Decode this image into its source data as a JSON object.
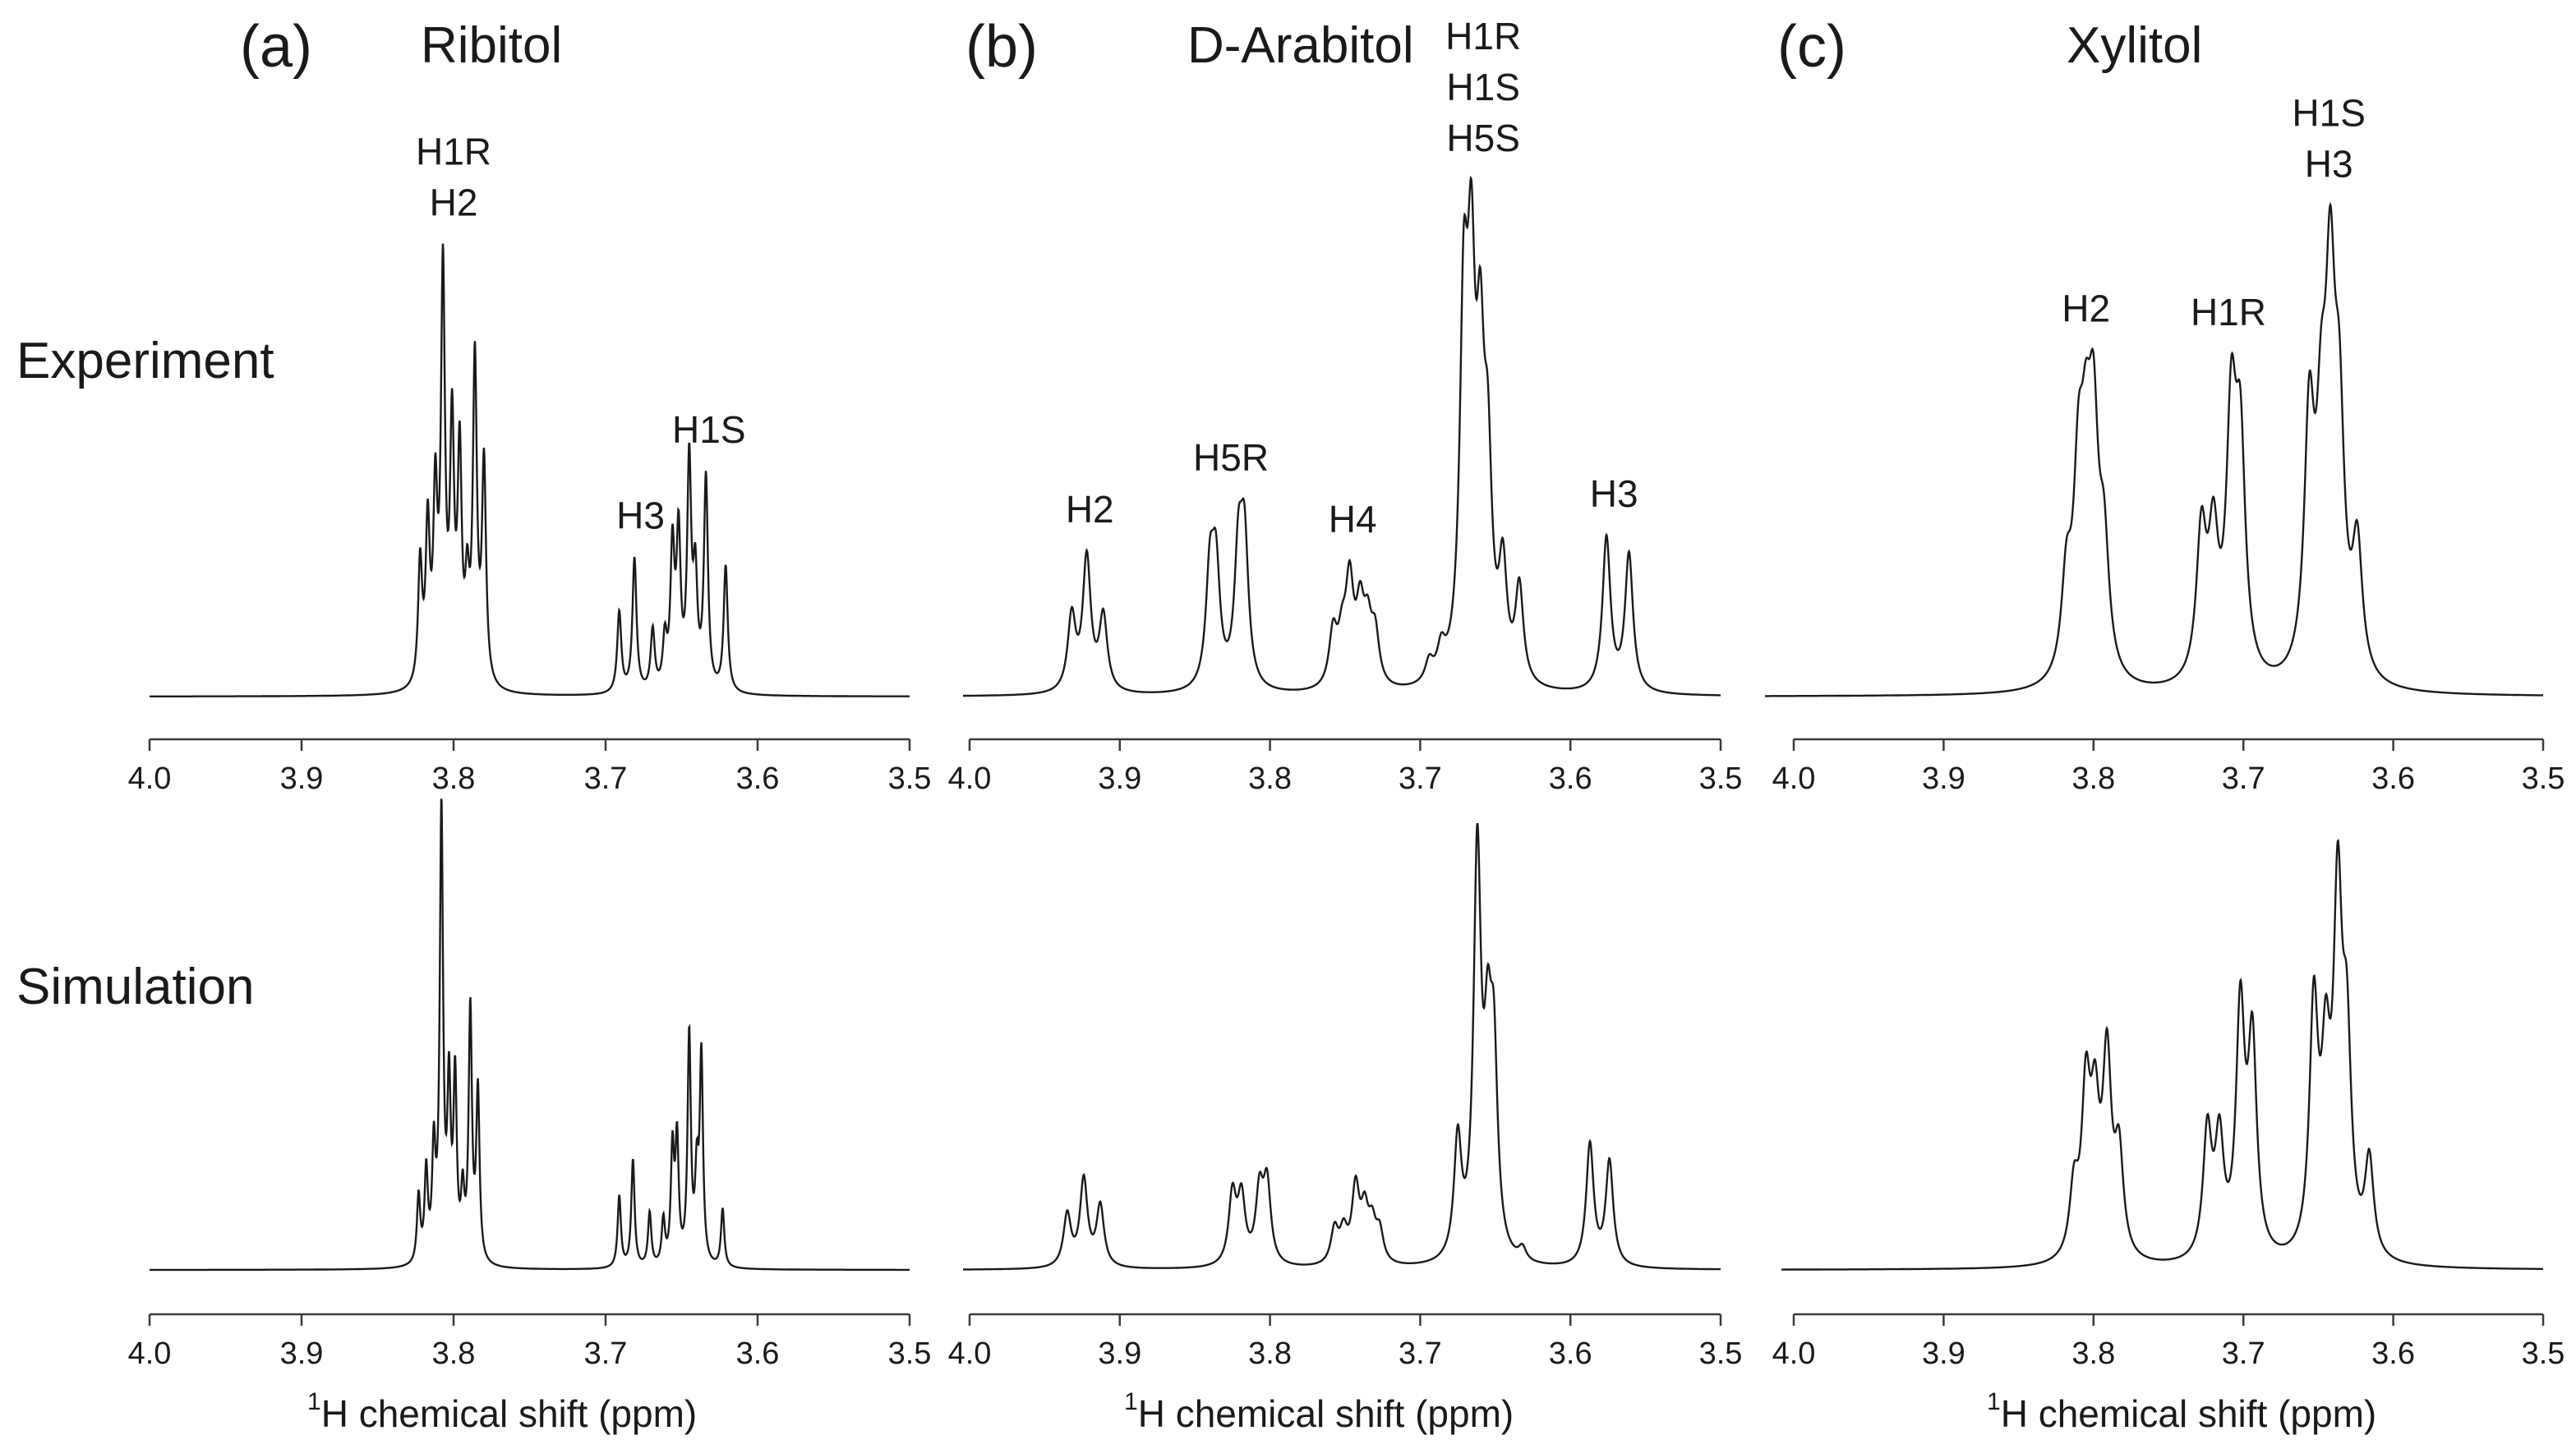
{
  "row_labels": {
    "experiment": "Experiment",
    "simulation": "Simulation"
  },
  "panels": [
    {
      "letter": "(a)",
      "prefix": "",
      "name": "Ribitol"
    },
    {
      "letter": "(b)",
      "prefix": "D",
      "name": "-Arabitol"
    },
    {
      "letter": "(c)",
      "prefix": "",
      "name": "Xylitol"
    }
  ],
  "xlabel": {
    "sup": "1",
    "text": "H chemical shift (ppm)"
  },
  "colors": {
    "line": "#1a1a1a",
    "axis": "#3a3a3a",
    "background": "#ffffff"
  },
  "chart_data": [
    {
      "type": "line",
      "title": "Ribitol",
      "row": "experiment",
      "xlabel": "1H chemical shift (ppm)",
      "xlim": [
        4.0,
        3.5
      ],
      "reversed_x": true,
      "ticks": [
        4.0,
        3.9,
        3.8,
        3.7,
        3.6,
        3.5
      ],
      "tick_labels": [
        "4.0",
        "3.9",
        "3.8",
        "3.7",
        "3.6",
        "3.5"
      ],
      "peaks": [
        [
          3.822,
          0.3
        ],
        [
          3.817,
          0.38
        ],
        [
          3.812,
          0.44
        ],
        [
          3.807,
          1.0
        ],
        [
          3.801,
          0.61
        ],
        [
          3.796,
          0.55
        ],
        [
          3.791,
          0.21
        ],
        [
          3.786,
          0.79
        ],
        [
          3.78,
          0.54
        ],
        [
          3.691,
          0.2
        ],
        [
          3.681,
          0.33
        ],
        [
          3.669,
          0.15
        ],
        [
          3.661,
          0.12
        ],
        [
          3.656,
          0.34
        ],
        [
          3.652,
          0.37
        ],
        [
          3.645,
          0.55
        ],
        [
          3.641,
          0.26
        ],
        [
          3.634,
          0.52
        ],
        [
          3.621,
          0.31
        ]
      ],
      "linewidth": 0.0016,
      "annotations": [
        {
          "lines": [
            "H1R",
            "H2"
          ],
          "x": 3.8
        },
        {
          "lines": [
            "H3"
          ],
          "x": 3.677
        },
        {
          "lines": [
            "H1S"
          ],
          "x": 3.632
        }
      ]
    },
    {
      "type": "line",
      "title": "Ribitol",
      "row": "simulation",
      "xlabel": "1H chemical shift (ppm)",
      "xlim": [
        4.0,
        3.5
      ],
      "reversed_x": true,
      "ticks": [
        4.0,
        3.9,
        3.8,
        3.7,
        3.6,
        3.5
      ],
      "tick_labels": [
        "4.0",
        "3.9",
        "3.8",
        "3.7",
        "3.6",
        "3.5"
      ],
      "peaks": [
        [
          3.823,
          0.15
        ],
        [
          3.818,
          0.2
        ],
        [
          3.813,
          0.24
        ],
        [
          3.808,
          1.0
        ],
        [
          3.803,
          0.37
        ],
        [
          3.799,
          0.4
        ],
        [
          3.794,
          0.14
        ],
        [
          3.789,
          0.56
        ],
        [
          3.784,
          0.38
        ],
        [
          3.691,
          0.16
        ],
        [
          3.682,
          0.24
        ],
        [
          3.671,
          0.12
        ],
        [
          3.662,
          0.1
        ],
        [
          3.656,
          0.25
        ],
        [
          3.653,
          0.27
        ],
        [
          3.645,
          0.51
        ],
        [
          3.64,
          0.18
        ],
        [
          3.637,
          0.46
        ],
        [
          3.623,
          0.13
        ]
      ],
      "linewidth": 0.0013,
      "annotations": []
    },
    {
      "type": "line",
      "title": "D-Arabitol",
      "row": "experiment",
      "xlabel": "1H chemical shift (ppm)",
      "xlim": [
        4.0,
        3.5
      ],
      "reversed_x": true,
      "ticks": [
        4.0,
        3.9,
        3.8,
        3.7,
        3.6,
        3.5
      ],
      "tick_labels": [
        "4.0",
        "3.9",
        "3.8",
        "3.7",
        "3.6",
        "3.5"
      ],
      "peaks": [
        [
          3.932,
          0.18
        ],
        [
          3.922,
          0.32
        ],
        [
          3.911,
          0.18
        ],
        [
          3.84,
          0.26
        ],
        [
          3.836,
          0.27
        ],
        [
          3.821,
          0.3
        ],
        [
          3.817,
          0.33
        ],
        [
          3.758,
          0.13
        ],
        [
          3.752,
          0.1
        ],
        [
          3.747,
          0.24
        ],
        [
          3.74,
          0.17
        ],
        [
          3.735,
          0.13
        ],
        [
          3.73,
          0.12
        ],
        [
          3.694,
          0.05
        ],
        [
          3.686,
          0.07
        ],
        [
          3.671,
          0.82
        ],
        [
          3.666,
          0.82
        ],
        [
          3.66,
          0.64
        ],
        [
          3.655,
          0.45
        ],
        [
          3.645,
          0.26
        ],
        [
          3.634,
          0.23
        ],
        [
          3.576,
          0.37
        ],
        [
          3.561,
          0.33
        ]
      ],
      "linewidth": 0.0032,
      "annotations": [
        {
          "lines": [
            "H2"
          ],
          "x": 3.92
        },
        {
          "lines": [
            "H5R"
          ],
          "x": 3.826
        },
        {
          "lines": [
            "H4"
          ],
          "x": 3.745
        },
        {
          "lines": [
            "H1R",
            "H1S",
            "H5S"
          ],
          "x": 3.658
        },
        {
          "lines": [
            "H3"
          ],
          "x": 3.571
        }
      ]
    },
    {
      "type": "line",
      "title": "D-Arabitol",
      "row": "simulation",
      "xlabel": "1H chemical shift (ppm)",
      "xlim": [
        4.0,
        3.5
      ],
      "reversed_x": true,
      "ticks": [
        4.0,
        3.9,
        3.8,
        3.7,
        3.6,
        3.5
      ],
      "tick_labels": [
        "4.0",
        "3.9",
        "3.8",
        "3.7",
        "3.6",
        "3.5"
      ],
      "peaks": [
        [
          3.935,
          0.12
        ],
        [
          3.924,
          0.2
        ],
        [
          3.913,
          0.14
        ],
        [
          3.825,
          0.16
        ],
        [
          3.819,
          0.15
        ],
        [
          3.807,
          0.16
        ],
        [
          3.802,
          0.18
        ],
        [
          3.757,
          0.08
        ],
        [
          3.751,
          0.07
        ],
        [
          3.743,
          0.17
        ],
        [
          3.737,
          0.11
        ],
        [
          3.732,
          0.08
        ],
        [
          3.727,
          0.07
        ],
        [
          3.675,
          0.27
        ],
        [
          3.662,
          0.92
        ],
        [
          3.655,
          0.4
        ],
        [
          3.651,
          0.42
        ],
        [
          3.632,
          0.03
        ],
        [
          3.587,
          0.28
        ],
        [
          3.574,
          0.24
        ]
      ],
      "linewidth": 0.003,
      "annotations": []
    },
    {
      "type": "line",
      "title": "Xylitol",
      "row": "experiment",
      "xlabel": "1H chemical shift (ppm)",
      "xlim": [
        4.0,
        3.5
      ],
      "reversed_x": true,
      "ticks": [
        4.0,
        3.9,
        3.8,
        3.7,
        3.6,
        3.5
      ],
      "tick_labels": [
        "4.0",
        "3.9",
        "3.8",
        "3.7",
        "3.6",
        "3.5"
      ],
      "peaks": [
        [
          3.818,
          0.22
        ],
        [
          3.81,
          0.42
        ],
        [
          3.805,
          0.38
        ],
        [
          3.8,
          0.52
        ],
        [
          3.793,
          0.28
        ],
        [
          3.728,
          0.34
        ],
        [
          3.72,
          0.31
        ],
        [
          3.708,
          0.59
        ],
        [
          3.702,
          0.51
        ],
        [
          3.656,
          0.58
        ],
        [
          3.648,
          0.45
        ],
        [
          3.642,
          0.8
        ],
        [
          3.636,
          0.52
        ],
        [
          3.624,
          0.3
        ]
      ],
      "linewidth": 0.004,
      "annotations": [
        {
          "lines": [
            "H2"
          ],
          "x": 3.805
        },
        {
          "lines": [
            "H1R"
          ],
          "x": 3.71
        },
        {
          "lines": [
            "H1S",
            "H3"
          ],
          "x": 3.643
        }
      ]
    },
    {
      "type": "line",
      "title": "Xylitol",
      "row": "simulation",
      "xlabel": "1H chemical shift (ppm)",
      "xlim": [
        4.0,
        3.5
      ],
      "reversed_x": true,
      "ticks": [
        4.0,
        3.9,
        3.8,
        3.7,
        3.6,
        3.5
      ],
      "tick_labels": [
        "4.0",
        "3.9",
        "3.8",
        "3.7",
        "3.6",
        "3.5"
      ],
      "peaks": [
        [
          3.813,
          0.16
        ],
        [
          3.805,
          0.38
        ],
        [
          3.799,
          0.31
        ],
        [
          3.791,
          0.46
        ],
        [
          3.783,
          0.24
        ],
        [
          3.724,
          0.3
        ],
        [
          3.716,
          0.27
        ],
        [
          3.702,
          0.58
        ],
        [
          3.694,
          0.5
        ],
        [
          3.653,
          0.58
        ],
        [
          3.645,
          0.4
        ],
        [
          3.637,
          0.81
        ],
        [
          3.631,
          0.46
        ],
        [
          3.616,
          0.23
        ]
      ],
      "linewidth": 0.0035,
      "annotations": []
    }
  ]
}
